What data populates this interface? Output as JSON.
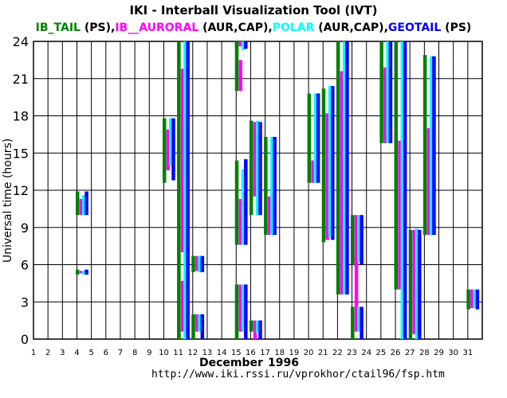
{
  "title": "IKI - Interball Visualization Tool (IVT)",
  "legend": [
    {
      "name": "IB_TAIL",
      "mode": "(PS)",
      "color": "#008000"
    },
    {
      "name": "IB__AURORAL",
      "mode": "(AUR,CAP)",
      "color": "#ff00ff"
    },
    {
      "name": "POLAR",
      "mode": "(AUR,CAP)",
      "color": "#00ffff"
    },
    {
      "name": "GEOTAIL",
      "mode": "(PS)",
      "color": "#0000ff"
    }
  ],
  "legend_separator": ",",
  "footer": {
    "month": "December",
    "year": "1996",
    "url": "http://www.iki.rssi.ru/vprokhor/ctail96/fsp.htm"
  },
  "chart_data": {
    "type": "bar",
    "title": "IKI - Interball Visualization Tool (IVT)",
    "xlabel": "December 1996",
    "ylabel": "Universal time (hours)",
    "x_ticks": [
      1,
      2,
      3,
      4,
      5,
      6,
      7,
      8,
      9,
      10,
      11,
      12,
      13,
      14,
      15,
      16,
      17,
      18,
      19,
      20,
      21,
      22,
      23,
      24,
      25,
      26,
      27,
      28,
      29,
      30,
      31
    ],
    "y_ticks": [
      0,
      3,
      6,
      9,
      12,
      15,
      18,
      21,
      24
    ],
    "xlim": [
      1,
      32
    ],
    "ylim": [
      0,
      24
    ],
    "grid": true,
    "series": [
      {
        "name": "IB_TAIL",
        "color": "#008000",
        "intervals": [
          [
            4.0,
            10.0,
            11.9
          ],
          [
            4.0,
            5.2,
            5.6
          ],
          [
            10.0,
            12.6,
            17.8
          ],
          [
            11.0,
            0.0,
            24.0
          ],
          [
            12.0,
            5.4,
            6.7
          ],
          [
            12.0,
            0.0,
            2.0
          ],
          [
            15.0,
            23.4,
            24.0
          ],
          [
            15.0,
            20.0,
            24.0
          ],
          [
            15.0,
            7.6,
            14.4
          ],
          [
            15.0,
            0.0,
            4.4
          ],
          [
            16.0,
            0.6,
            1.5
          ],
          [
            16.0,
            10.0,
            17.6
          ],
          [
            17.0,
            8.4,
            16.3
          ],
          [
            20.0,
            12.6,
            19.8
          ],
          [
            21.0,
            7.8,
            20.2
          ],
          [
            22.0,
            3.6,
            24.0
          ],
          [
            23.0,
            0.0,
            2.6
          ],
          [
            23.0,
            6.0,
            10.0
          ],
          [
            25.0,
            15.8,
            24.0
          ],
          [
            26.0,
            4.0,
            24.0
          ],
          [
            27.0,
            0.0,
            8.8
          ],
          [
            28.0,
            8.4,
            22.9
          ],
          [
            31.0,
            2.4,
            4.0
          ]
        ]
      },
      {
        "name": "IB__AURORAL",
        "color": "#ff00ff",
        "intervals": [
          [
            4.0,
            10.0,
            11.3
          ],
          [
            4.0,
            5.3,
            5.5
          ],
          [
            10.0,
            13.6,
            16.9
          ],
          [
            11.0,
            7.0,
            21.8
          ],
          [
            11.0,
            0.6,
            4.7
          ],
          [
            12.0,
            5.5,
            6.7
          ],
          [
            12.0,
            0.6,
            2.0
          ],
          [
            15.0,
            23.6,
            24.0
          ],
          [
            15.0,
            20.0,
            22.5
          ],
          [
            15.0,
            7.6,
            11.3
          ],
          [
            15.0,
            0.6,
            4.4
          ],
          [
            16.0,
            0.0,
            1.5
          ],
          [
            16.0,
            11.5,
            17.5
          ],
          [
            17.0,
            8.4,
            11.5
          ],
          [
            20.0,
            12.6,
            14.4
          ],
          [
            21.0,
            8.0,
            18.2
          ],
          [
            22.0,
            3.6,
            21.6
          ],
          [
            23.0,
            0.6,
            7.0
          ],
          [
            23.0,
            6.0,
            10.0
          ],
          [
            25.0,
            15.8,
            21.9
          ],
          [
            26.0,
            4.0,
            16.0
          ],
          [
            27.0,
            0.4,
            8.8
          ],
          [
            28.0,
            8.4,
            17.0
          ],
          [
            31.0,
            2.5,
            4.0
          ]
        ]
      },
      {
        "name": "POLAR",
        "color": "#00ffff",
        "intervals": [
          [
            4.0,
            10.0,
            11.6
          ],
          [
            4.0,
            5.2,
            5.5
          ],
          [
            10.0,
            14.0,
            17.8
          ],
          [
            11.0,
            0.0,
            24.0
          ],
          [
            12.0,
            5.4,
            6.7
          ],
          [
            12.0,
            0.6,
            2.0
          ],
          [
            15.0,
            23.3,
            24.0
          ],
          [
            15.0,
            7.6,
            13.7
          ],
          [
            15.0,
            0.6,
            4.4
          ],
          [
            16.0,
            0.5,
            1.5
          ],
          [
            16.0,
            10.0,
            17.6
          ],
          [
            17.0,
            8.4,
            16.3
          ],
          [
            20.0,
            12.6,
            19.8
          ],
          [
            21.0,
            8.2,
            20.4
          ],
          [
            22.0,
            3.6,
            24.0
          ],
          [
            23.0,
            0.6,
            2.6
          ],
          [
            23.0,
            6.2,
            10.0
          ],
          [
            25.0,
            15.8,
            24.0
          ],
          [
            26.0,
            0.0,
            24.0
          ],
          [
            27.0,
            0.0,
            8.9
          ],
          [
            28.0,
            8.4,
            22.8
          ],
          [
            31.0,
            2.5,
            4.0
          ]
        ]
      },
      {
        "name": "GEOTAIL",
        "color": "#0000ff",
        "intervals": [
          [
            4.0,
            10.0,
            11.9
          ],
          [
            4.0,
            5.2,
            5.6
          ],
          [
            10.0,
            12.8,
            17.8
          ],
          [
            11.0,
            0.0,
            24.0
          ],
          [
            12.0,
            5.4,
            6.7
          ],
          [
            12.0,
            0.0,
            2.0
          ],
          [
            15.0,
            23.4,
            24.0
          ],
          [
            15.0,
            7.6,
            14.5
          ],
          [
            15.0,
            0.0,
            4.4
          ],
          [
            16.0,
            0.0,
            1.5
          ],
          [
            16.0,
            10.0,
            17.5
          ],
          [
            17.0,
            8.4,
            16.3
          ],
          [
            20.0,
            12.6,
            19.8
          ],
          [
            21.0,
            8.0,
            20.4
          ],
          [
            22.0,
            3.6,
            24.0
          ],
          [
            23.0,
            0.0,
            2.6
          ],
          [
            23.0,
            6.0,
            10.0
          ],
          [
            25.0,
            15.8,
            24.0
          ],
          [
            26.0,
            0.0,
            24.0
          ],
          [
            27.0,
            0.0,
            8.8
          ],
          [
            28.0,
            8.4,
            22.8
          ],
          [
            31.0,
            2.4,
            4.0
          ]
        ]
      }
    ]
  }
}
